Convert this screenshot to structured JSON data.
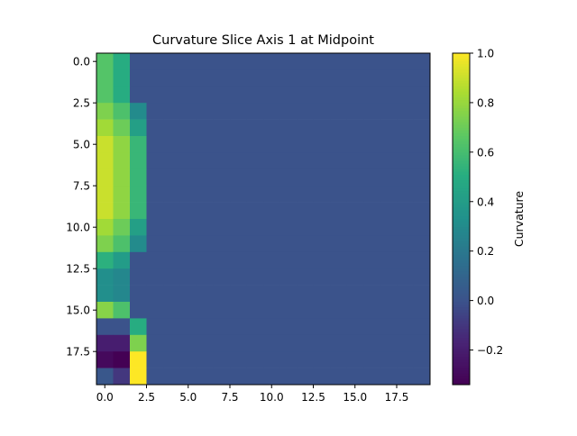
{
  "chart_data": {
    "type": "heatmap",
    "title": "Curvature Slice Axis 1 at Midpoint",
    "xlabel": "",
    "ylabel": "",
    "colorbar_label": "Curvature",
    "colormap": "viridis",
    "rows": 20,
    "cols": 20,
    "xlim": [
      -0.5,
      19.5
    ],
    "ylim": [
      19.5,
      -0.5
    ],
    "xticks": [
      0.0,
      2.5,
      5.0,
      7.5,
      10.0,
      12.5,
      15.0,
      17.5
    ],
    "xtick_labels": [
      "0.0",
      "2.5",
      "5.0",
      "7.5",
      "10.0",
      "12.5",
      "15.0",
      "17.5"
    ],
    "yticks": [
      0.0,
      2.5,
      5.0,
      7.5,
      10.0,
      12.5,
      15.0,
      17.5
    ],
    "ytick_labels": [
      "0.0",
      "2.5",
      "5.0",
      "7.5",
      "10.0",
      "12.5",
      "15.0",
      "17.5"
    ],
    "vmin": -0.34,
    "vmax": 1.0,
    "colorbar_ticks": [
      -0.2,
      0.0,
      0.2,
      0.4,
      0.6,
      0.8,
      1.0
    ],
    "colorbar_tick_labels": [
      "−0.2",
      "0.0",
      "0.2",
      "0.4",
      "0.6",
      "0.8",
      "1.0"
    ],
    "background_value": 0.0,
    "nonzero_columns": [
      [
        0.64,
        0.64,
        0.64,
        0.74,
        0.82,
        0.9,
        0.9,
        0.9,
        0.9,
        0.9,
        0.82,
        0.74,
        0.52,
        0.32,
        0.32,
        0.76,
        0.0,
        -0.2,
        -0.3,
        0.02
      ],
      [
        0.5,
        0.5,
        0.5,
        0.62,
        0.7,
        0.78,
        0.78,
        0.78,
        0.78,
        0.78,
        0.7,
        0.62,
        0.4,
        0.28,
        0.28,
        0.62,
        0.0,
        -0.2,
        -0.34,
        -0.1
      ],
      [
        0.0,
        0.0,
        0.0,
        0.3,
        0.42,
        0.56,
        0.56,
        0.56,
        0.56,
        0.56,
        0.42,
        0.3,
        0.0,
        0.0,
        0.0,
        0.0,
        0.5,
        0.74,
        1.0,
        1.0
      ]
    ]
  }
}
